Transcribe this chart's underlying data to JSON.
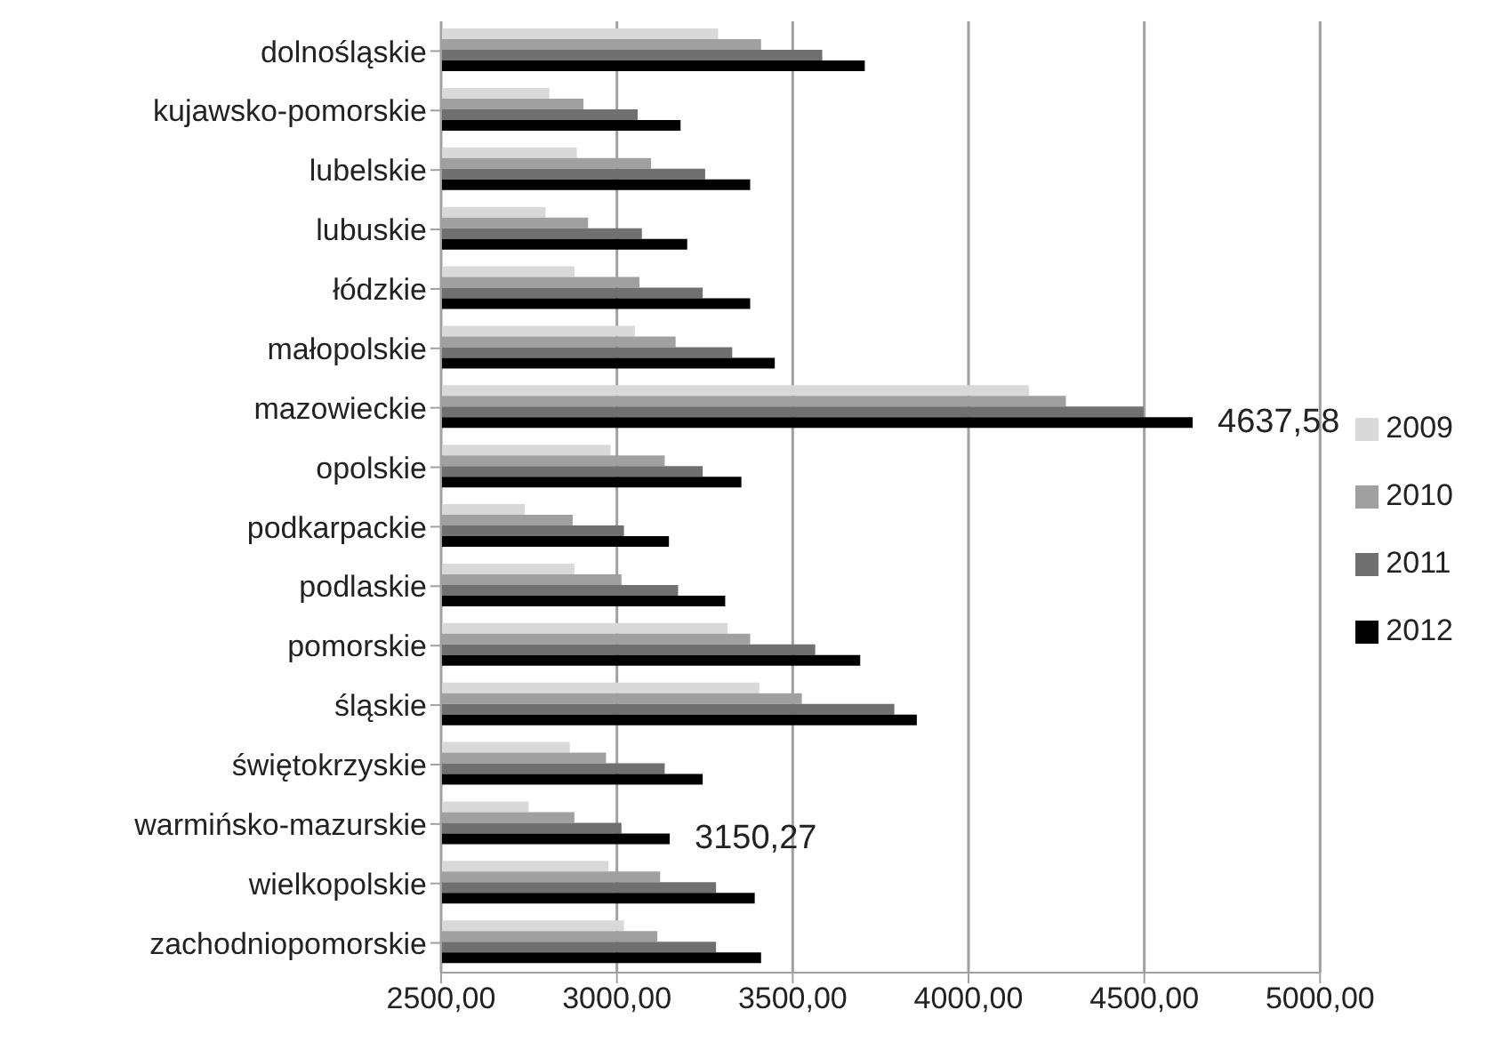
{
  "chart_data": {
    "type": "bar",
    "orientation": "horizontal",
    "categories": [
      "dolnośląskie",
      "kujawsko-pomorskie",
      "lubelskie",
      "lubuskie",
      "łódzkie",
      "małopolskie",
      "mazowieckie",
      "opolskie",
      "podkarpackie",
      "podlaskie",
      "pomorskie",
      "śląskie",
      "świętokrzyskie",
      "warmińsko-mazurskie",
      "wielkopolskie",
      "zachodniopomorskie"
    ],
    "series": [
      {
        "name": "2009",
        "color": "#d9d9d9",
        "values": [
          3288,
          2808,
          2886,
          2797,
          2879,
          3051,
          4172,
          2982,
          2738,
          2879,
          3315,
          3405,
          2866,
          2749,
          2976,
          3020
        ]
      },
      {
        "name": "2010",
        "color": "#a0a0a0",
        "values": [
          3410,
          2905,
          3097,
          2918,
          3064,
          3167,
          4277,
          3136,
          2874,
          3013,
          3379,
          3526,
          2969,
          2879,
          3123,
          3115
        ]
      },
      {
        "name": "2011",
        "color": "#707070",
        "values": [
          3584,
          3059,
          3251,
          3071,
          3244,
          3328,
          4498,
          3244,
          3020,
          3174,
          3564,
          3789,
          3136,
          3013,
          3282,
          3282
        ]
      },
      {
        "name": "2012",
        "color": "#000000",
        "values": [
          3705,
          3181,
          3379,
          3200,
          3379,
          3449,
          4637.58,
          3354,
          3148,
          3308,
          3692,
          3853,
          3244,
          3150.27,
          3392,
          3410
        ],
        "value_labels": [
          null,
          null,
          null,
          null,
          null,
          null,
          "4637,58",
          null,
          null,
          null,
          null,
          null,
          null,
          "3150,27",
          null,
          null
        ]
      }
    ],
    "xlim": [
      2500,
      5000
    ],
    "xticks": [
      {
        "value": 2500,
        "label": "2500,00"
      },
      {
        "value": 3000,
        "label": "3000,00"
      },
      {
        "value": 3500,
        "label": "3500,00"
      },
      {
        "value": 4000,
        "label": "4000,00"
      },
      {
        "value": 4500,
        "label": "4500,00"
      },
      {
        "value": 5000,
        "label": "5000,00"
      }
    ],
    "grid": "x",
    "legend": "right"
  }
}
